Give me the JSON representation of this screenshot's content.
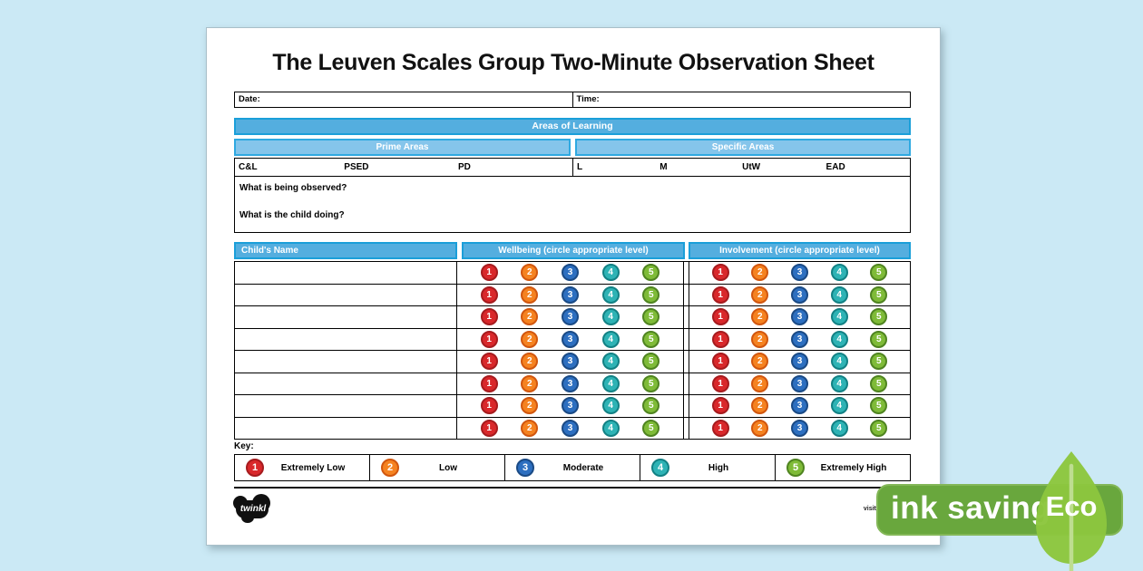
{
  "title": "The Leuven Scales Group Two-Minute Observation Sheet",
  "meta": {
    "date_label": "Date:",
    "time_label": "Time:"
  },
  "areas": {
    "header": "Areas of Learning",
    "prime": {
      "label": "Prime Areas",
      "items": [
        "C&L",
        "PSED",
        "PD"
      ]
    },
    "specific": {
      "label": "Specific Areas",
      "items": [
        "L",
        "M",
        "UtW",
        "EAD"
      ]
    }
  },
  "observation": {
    "question1": "What is being observed?",
    "question2": "What is the child doing?"
  },
  "table": {
    "name_header": "Child's Name",
    "wellbeing_header": "Wellbeing (circle appropriate level)",
    "involvement_header": "Involvement (circle appropriate level)",
    "row_count": 8,
    "levels": [
      {
        "num": "1",
        "fill": "#d9282b",
        "ring": "#a61b1e"
      },
      {
        "num": "2",
        "fill": "#f58220",
        "ring": "#d1560e"
      },
      {
        "num": "3",
        "fill": "#2d6fc0",
        "ring": "#1a4a85"
      },
      {
        "num": "4",
        "fill": "#2eb3b5",
        "ring": "#128184"
      },
      {
        "num": "5",
        "fill": "#7fbb38",
        "ring": "#4f8420"
      }
    ]
  },
  "key": {
    "label": "Key:",
    "items": [
      {
        "num": "1",
        "label": "Extremely Low"
      },
      {
        "num": "2",
        "label": "Low"
      },
      {
        "num": "3",
        "label": "Moderate"
      },
      {
        "num": "4",
        "label": "High"
      },
      {
        "num": "5",
        "label": "Extremely High"
      }
    ]
  },
  "footer": {
    "logo_text": "twinkl",
    "visit_text": "visit twinkl.com"
  },
  "badge": {
    "ink_text": "ink saving",
    "eco_text": "Eco"
  },
  "colors": {
    "background": "#cbe9f5",
    "bar_fill": "#54aedf",
    "bar_border": "#1b9fd9",
    "subbar_fill": "#85c5eb",
    "subbar_border": "#2fa9e1",
    "badge_green": "#69a73d",
    "leaf_green": "#8cc63e"
  }
}
